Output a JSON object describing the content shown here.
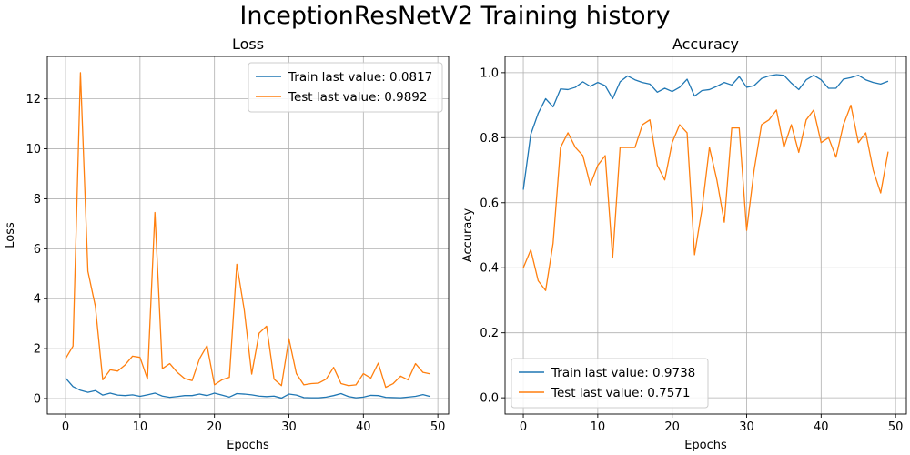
{
  "figure": {
    "suptitle": "InceptionResNetV2 Training history"
  },
  "chart_data": [
    {
      "type": "line",
      "title": "Loss",
      "xlabel": "Epochs",
      "ylabel": "Loss",
      "xlim": [
        -2.45,
        51.45
      ],
      "ylim": [
        -0.62,
        13.7
      ],
      "xticks": [
        0,
        10,
        20,
        30,
        40,
        50
      ],
      "yticks": [
        0,
        2,
        4,
        6,
        8,
        10,
        12
      ],
      "grid": true,
      "legend_position": "top-right",
      "series": [
        {
          "name": "Train last value: 0.0817",
          "color": "#1f77b4",
          "x": [
            0,
            1,
            2,
            3,
            4,
            5,
            6,
            7,
            8,
            9,
            10,
            11,
            12,
            13,
            14,
            15,
            16,
            17,
            18,
            19,
            20,
            21,
            22,
            23,
            24,
            25,
            26,
            27,
            28,
            29,
            30,
            31,
            32,
            33,
            34,
            35,
            36,
            37,
            38,
            39,
            40,
            41,
            42,
            43,
            44,
            45,
            46,
            47,
            48,
            49
          ],
          "values": [
            0.82,
            0.48,
            0.33,
            0.25,
            0.32,
            0.14,
            0.22,
            0.14,
            0.12,
            0.15,
            0.09,
            0.15,
            0.22,
            0.1,
            0.05,
            0.08,
            0.12,
            0.12,
            0.18,
            0.12,
            0.22,
            0.14,
            0.06,
            0.2,
            0.18,
            0.15,
            0.1,
            0.08,
            0.1,
            0.02,
            0.18,
            0.14,
            0.04,
            0.03,
            0.03,
            0.06,
            0.12,
            0.2,
            0.08,
            0.03,
            0.06,
            0.13,
            0.12,
            0.05,
            0.04,
            0.03,
            0.06,
            0.09,
            0.16,
            0.0817
          ]
        },
        {
          "name": "Test last value: 0.9892",
          "color": "#ff7f0e",
          "x": [
            0,
            1,
            2,
            3,
            4,
            5,
            6,
            7,
            8,
            9,
            10,
            11,
            12,
            13,
            14,
            15,
            16,
            17,
            18,
            19,
            20,
            21,
            22,
            23,
            24,
            25,
            26,
            27,
            28,
            29,
            30,
            31,
            32,
            33,
            34,
            35,
            36,
            37,
            38,
            39,
            40,
            41,
            42,
            43,
            44,
            45,
            46,
            47,
            48,
            49
          ],
          "values": [
            1.6,
            2.1,
            13.05,
            5.1,
            3.7,
            0.75,
            1.15,
            1.1,
            1.35,
            1.7,
            1.65,
            0.78,
            7.45,
            1.2,
            1.4,
            1.05,
            0.8,
            0.72,
            1.6,
            2.12,
            0.55,
            0.75,
            0.85,
            5.38,
            3.55,
            0.98,
            2.62,
            2.9,
            0.78,
            0.52,
            2.4,
            1.0,
            0.55,
            0.6,
            0.62,
            0.78,
            1.25,
            0.6,
            0.52,
            0.55,
            1.0,
            0.82,
            1.42,
            0.45,
            0.6,
            0.9,
            0.75,
            1.4,
            1.05,
            0.9892
          ]
        }
      ]
    },
    {
      "type": "line",
      "title": "Accuracy",
      "xlabel": "Epochs",
      "ylabel": "Accuracy",
      "xlim": [
        -2.45,
        51.45
      ],
      "ylim": [
        -0.05,
        1.05
      ],
      "xticks": [
        0,
        10,
        20,
        30,
        40,
        50
      ],
      "yticks": [
        0.0,
        0.2,
        0.4,
        0.6,
        0.8,
        1.0
      ],
      "grid": true,
      "legend_position": "bottom-left",
      "series": [
        {
          "name": "Train last value: 0.9738",
          "color": "#1f77b4",
          "x": [
            0,
            1,
            2,
            3,
            4,
            5,
            6,
            7,
            8,
            9,
            10,
            11,
            12,
            13,
            14,
            15,
            16,
            17,
            18,
            19,
            20,
            21,
            22,
            23,
            24,
            25,
            26,
            27,
            28,
            29,
            30,
            31,
            32,
            33,
            34,
            35,
            36,
            37,
            38,
            39,
            40,
            41,
            42,
            43,
            44,
            45,
            46,
            47,
            48,
            49
          ],
          "values": [
            0.64,
            0.81,
            0.875,
            0.92,
            0.895,
            0.95,
            0.948,
            0.955,
            0.972,
            0.958,
            0.97,
            0.96,
            0.92,
            0.972,
            0.99,
            0.978,
            0.97,
            0.965,
            0.94,
            0.952,
            0.942,
            0.955,
            0.98,
            0.928,
            0.945,
            0.948,
            0.958,
            0.97,
            0.962,
            0.988,
            0.955,
            0.96,
            0.982,
            0.99,
            0.994,
            0.992,
            0.968,
            0.948,
            0.978,
            0.992,
            0.978,
            0.952,
            0.952,
            0.98,
            0.985,
            0.992,
            0.978,
            0.97,
            0.965,
            0.9738
          ]
        },
        {
          "name": "Test last value: 0.7571",
          "color": "#ff7f0e",
          "x": [
            0,
            1,
            2,
            3,
            4,
            5,
            6,
            7,
            8,
            9,
            10,
            11,
            12,
            13,
            14,
            15,
            16,
            17,
            18,
            19,
            20,
            21,
            22,
            23,
            24,
            25,
            26,
            27,
            28,
            29,
            30,
            31,
            32,
            33,
            34,
            35,
            36,
            37,
            38,
            39,
            40,
            41,
            42,
            43,
            44,
            45,
            46,
            47,
            48,
            49
          ],
          "values": [
            0.4,
            0.455,
            0.36,
            0.33,
            0.475,
            0.77,
            0.815,
            0.77,
            0.745,
            0.655,
            0.715,
            0.745,
            0.43,
            0.77,
            0.77,
            0.77,
            0.84,
            0.855,
            0.715,
            0.67,
            0.785,
            0.84,
            0.815,
            0.44,
            0.58,
            0.77,
            0.67,
            0.54,
            0.83,
            0.83,
            0.515,
            0.7,
            0.84,
            0.855,
            0.885,
            0.77,
            0.84,
            0.755,
            0.855,
            0.885,
            0.785,
            0.8,
            0.74,
            0.84,
            0.9,
            0.785,
            0.815,
            0.7,
            0.63,
            0.7571
          ]
        }
      ]
    }
  ]
}
